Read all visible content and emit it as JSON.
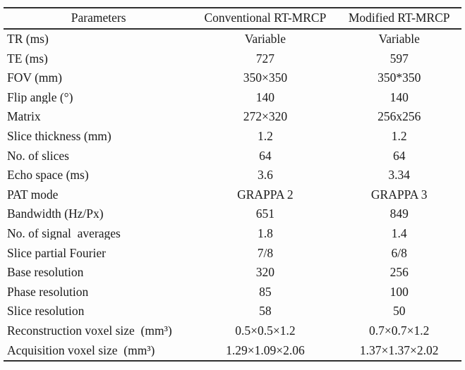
{
  "page": {
    "background": "#fdfdfd",
    "text_color": "#1b1b1b",
    "line_color": "#2f2f2f"
  },
  "table": {
    "columns": [
      "Parameters",
      "Conventional RT-MRCP",
      "Modified RT-MRCP"
    ],
    "rows": [
      {
        "parameter": "TR (ms)",
        "conventional": "Variable",
        "modified": "Variable"
      },
      {
        "parameter": "TE (ms)",
        "conventional": "727",
        "modified": "597"
      },
      {
        "parameter": "FOV (mm)",
        "conventional": "350×350",
        "modified": "350*350"
      },
      {
        "parameter": "Flip angle (°)",
        "conventional": "140",
        "modified": "140"
      },
      {
        "parameter": "Matrix",
        "conventional": "272×320",
        "modified": "256x256"
      },
      {
        "parameter": "Slice thickness (mm)",
        "conventional": "1.2",
        "modified": "1.2"
      },
      {
        "parameter": "No. of slices",
        "conventional": "64",
        "modified": "64"
      },
      {
        "parameter": "Echo space (ms)",
        "conventional": "3.6",
        "modified": "3.34"
      },
      {
        "parameter": "PAT mode",
        "conventional": "GRAPPA 2",
        "modified": "GRAPPA 3"
      },
      {
        "parameter": "Bandwidth (Hz/Px)",
        "conventional": "651",
        "modified": "849"
      },
      {
        "parameter": "No. of signal  averages",
        "conventional": "1.8",
        "modified": "1.4"
      },
      {
        "parameter": "Slice partial Fourier",
        "conventional": "7/8",
        "modified": "6/8"
      },
      {
        "parameter": "Base resolution",
        "conventional": "320",
        "modified": "256"
      },
      {
        "parameter": "Phase resolution",
        "conventional": "85",
        "modified": "100"
      },
      {
        "parameter": "Slice resolution",
        "conventional": "58",
        "modified": "50"
      },
      {
        "parameter": "Reconstruction voxel size  (mm³)",
        "conventional": "0.5×0.5×1.2",
        "modified": "0.7×0.7×1.2"
      },
      {
        "parameter": "Acquisition voxel size  (mm³)",
        "conventional": "1.29×1.09×2.06",
        "modified": "1.37×1.37×2.02"
      }
    ]
  }
}
